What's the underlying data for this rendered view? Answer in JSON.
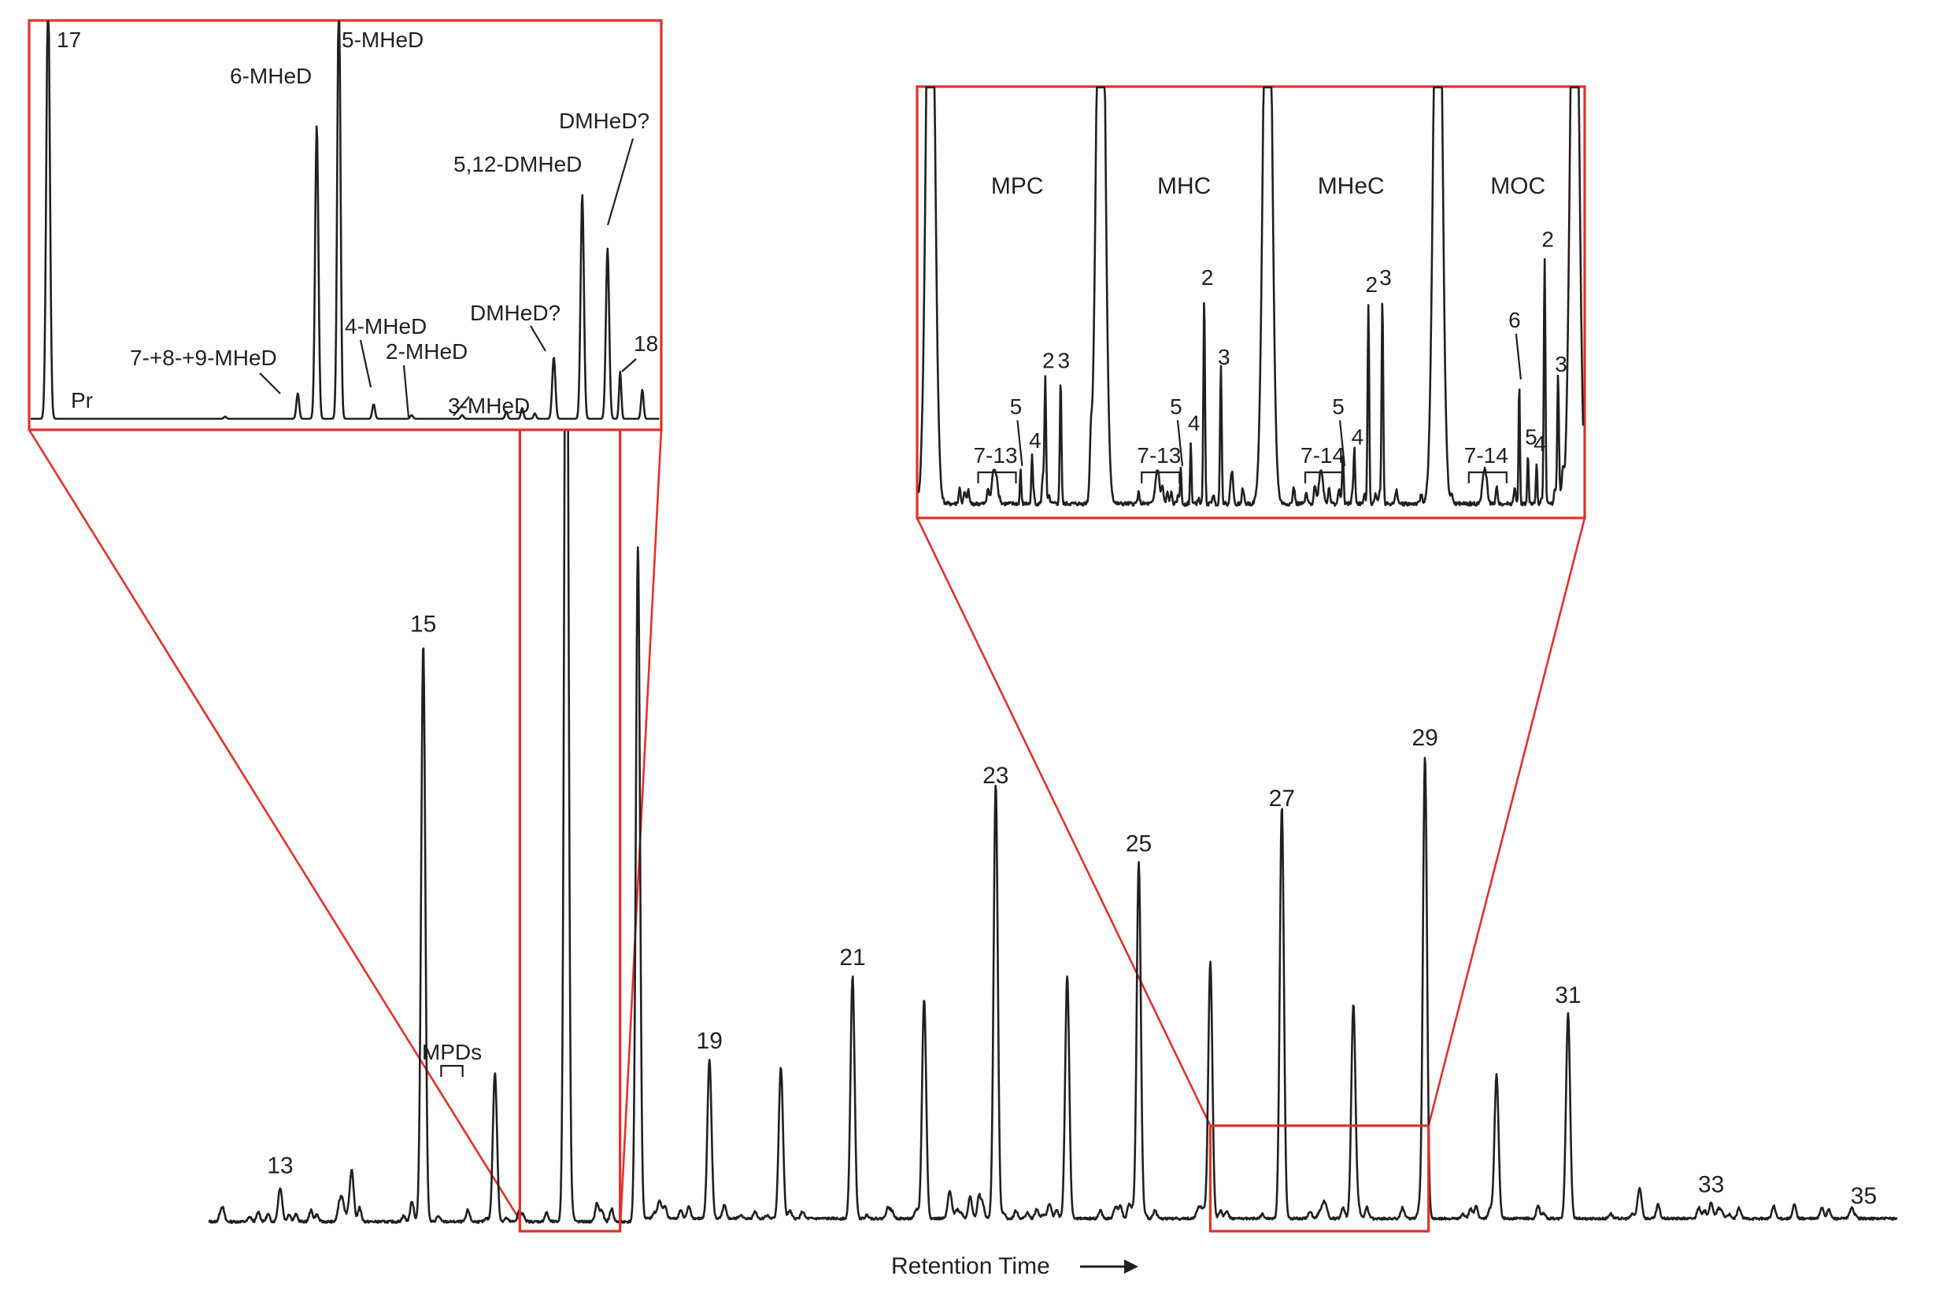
{
  "chart_data": [
    {
      "id": "main",
      "type": "line",
      "xlabel": "Retention Time",
      "peaks": [
        {
          "label": "13",
          "x": 13,
          "h": 0.045
        },
        {
          "label": "15",
          "x": 15,
          "h": 0.76
        },
        {
          "label": "17",
          "x": 17,
          "h": 1.5
        },
        {
          "label": "19",
          "x": 19,
          "h": 0.21
        },
        {
          "label": "21",
          "x": 21,
          "h": 0.32
        },
        {
          "label": "23",
          "x": 23,
          "h": 0.56
        },
        {
          "label": "25",
          "x": 25,
          "h": 0.47
        },
        {
          "label": "27",
          "x": 27,
          "h": 0.53
        },
        {
          "label": "29",
          "x": 29,
          "h": 0.61
        },
        {
          "label": "31",
          "x": 31,
          "h": 0.27
        },
        {
          "label": "33",
          "x": 33,
          "h": 0.02
        },
        {
          "label": "35",
          "x": 35,
          "h": 0.005
        }
      ],
      "unlabeled_peaks": [
        {
          "x": 14,
          "h": 0.06
        },
        {
          "x": 16,
          "h": 0.18
        },
        {
          "x": 18,
          "h": 0.89
        },
        {
          "x": 20,
          "h": 0.19
        },
        {
          "x": 22,
          "h": 0.29
        },
        {
          "x": 24,
          "h": 0.32
        },
        {
          "x": 26,
          "h": 0.34
        },
        {
          "x": 28,
          "h": 0.28
        },
        {
          "x": 30,
          "h": 0.19
        },
        {
          "x": 32,
          "h": 0.04
        }
      ],
      "annotations": [
        {
          "text": "MPDs",
          "x_range": [
            15.25,
            15.55
          ]
        }
      ],
      "xlim": [
        12.0,
        35.6
      ],
      "ylim": [
        0,
        1.55
      ],
      "zoom_boxes": [
        {
          "x_range": [
            16.35,
            17.75
          ],
          "target": "inset_left"
        },
        {
          "x_range": [
            26.0,
            29.05
          ],
          "target": "inset_right"
        }
      ]
    },
    {
      "id": "inset_left",
      "type": "line",
      "peaks": [
        {
          "label": "17",
          "x": 0.03,
          "h": 1.2,
          "w": 0.0028,
          "anchor": "right"
        },
        {
          "label": "Pr",
          "x": 0.03,
          "h": 0.0,
          "w": 0,
          "anchor": "pr"
        },
        {
          "label": "7-+8-+9-MHeD",
          "x": 0.425,
          "h": 0.07,
          "w": 0.0022,
          "anchor": "leader"
        },
        {
          "label": "6-MHeD",
          "x": 0.455,
          "h": 0.81,
          "w": 0.0026,
          "anchor": "topleft"
        },
        {
          "label": "5-MHeD",
          "x": 0.49,
          "h": 1.2,
          "w": 0.0025,
          "anchor": "right"
        },
        {
          "label": "4-MHeD",
          "x": 0.545,
          "h": 0.04,
          "w": 0.0022,
          "anchor": "leader"
        },
        {
          "label": "2-MHeD",
          "x": 0.605,
          "h": 0.01,
          "w": 0.0022,
          "anchor": "leader"
        },
        {
          "label": "3-MHeD",
          "x": 0.685,
          "h": 0.01,
          "w": 0.0022,
          "anchor": "leader"
        },
        {
          "label": "DMHeD?",
          "x": 0.83,
          "h": 0.17,
          "w": 0.0025,
          "anchor": "leader"
        },
        {
          "label": "5,12-DMHeD",
          "x": 0.875,
          "h": 0.62,
          "w": 0.0026,
          "anchor": "top"
        },
        {
          "label": "DMHeD?",
          "x": 0.915,
          "h": 0.47,
          "w": 0.0026,
          "anchor": "leader"
        },
        {
          "label": "18",
          "x": 0.935,
          "h": 0.13,
          "w": 0.0018,
          "anchor": "leader"
        }
      ],
      "minor_peaks": [
        {
          "x": 0.31,
          "h": 0.006,
          "w": 0.002
        },
        {
          "x": 0.755,
          "h": 0.02,
          "w": 0.002
        },
        {
          "x": 0.78,
          "h": 0.03,
          "w": 0.002
        },
        {
          "x": 0.8,
          "h": 0.015,
          "w": 0.002
        },
        {
          "x": 0.97,
          "h": 0.08,
          "w": 0.002
        }
      ],
      "xlim": [
        0,
        1
      ],
      "ylim": [
        0,
        1
      ]
    },
    {
      "id": "inset_right",
      "type": "line",
      "segments": [
        {
          "name": "MPC",
          "peaks": [
            {
              "label": "7-13",
              "x": 0.115,
              "h": 0.1,
              "w": 0.003,
              "anchor": "bracket"
            },
            {
              "label": "5",
              "x": 0.155,
              "h": 0.1,
              "w": 0.001,
              "anchor": "leader"
            },
            {
              "label": "4",
              "x": 0.172,
              "h": 0.13,
              "w": 0.001,
              "anchor": "top"
            },
            {
              "label": "2",
              "x": 0.192,
              "h": 0.36,
              "w": 0.0012,
              "anchor": "top"
            },
            {
              "label": "3",
              "x": 0.215,
              "h": 0.36,
              "w": 0.0012,
              "anchor": "top"
            }
          ]
        },
        {
          "name": "MHC",
          "peaks": [
            {
              "label": "7-13",
              "x": 0.36,
              "h": 0.1,
              "w": 0.003,
              "anchor": "bracket"
            },
            {
              "label": "5",
              "x": 0.395,
              "h": 0.1,
              "w": 0.001,
              "anchor": "leader"
            },
            {
              "label": "4",
              "x": 0.41,
              "h": 0.18,
              "w": 0.001,
              "anchor": "top"
            },
            {
              "label": "2",
              "x": 0.43,
              "h": 0.6,
              "w": 0.0012,
              "anchor": "top"
            },
            {
              "label": "3",
              "x": 0.455,
              "h": 0.37,
              "w": 0.0012,
              "anchor": "top"
            }
          ]
        },
        {
          "name": "MHeC",
          "peaks": [
            {
              "label": "7-14",
              "x": 0.605,
              "h": 0.1,
              "w": 0.003,
              "anchor": "bracket"
            },
            {
              "label": "5",
              "x": 0.638,
              "h": 0.1,
              "w": 0.001,
              "anchor": "leader"
            },
            {
              "label": "4",
              "x": 0.655,
              "h": 0.14,
              "w": 0.001,
              "anchor": "top"
            },
            {
              "label": "2",
              "x": 0.676,
              "h": 0.58,
              "w": 0.0012,
              "anchor": "top"
            },
            {
              "label": "3",
              "x": 0.697,
              "h": 0.6,
              "w": 0.0012,
              "anchor": "top"
            }
          ]
        },
        {
          "name": "MOC",
          "peaks": [
            {
              "label": "7-14",
              "x": 0.85,
              "h": 0.1,
              "w": 0.003,
              "anchor": "bracket"
            },
            {
              "label": "6",
              "x": 0.902,
              "h": 0.35,
              "w": 0.001,
              "anchor": "leader"
            },
            {
              "label": "5",
              "x": 0.915,
              "h": 0.14,
              "w": 0.001,
              "anchor": "top"
            },
            {
              "label": "4",
              "x": 0.928,
              "h": 0.12,
              "w": 0.001,
              "anchor": "top"
            },
            {
              "label": "2",
              "x": 0.94,
              "h": 0.71,
              "w": 0.0012,
              "anchor": "top"
            },
            {
              "label": "3",
              "x": 0.96,
              "h": 0.35,
              "w": 0.0012,
              "anchor": "top"
            }
          ]
        }
      ],
      "alkane_peaks": [
        {
          "x": 0.02,
          "h": 1.3
        },
        {
          "x": 0.275,
          "h": 1.3
        },
        {
          "x": 0.525,
          "h": 1.3
        },
        {
          "x": 0.78,
          "h": 1.3
        },
        {
          "x": 0.985,
          "h": 1.3
        }
      ],
      "xlim": [
        0,
        1
      ],
      "ylim": [
        0,
        1
      ]
    }
  ]
}
